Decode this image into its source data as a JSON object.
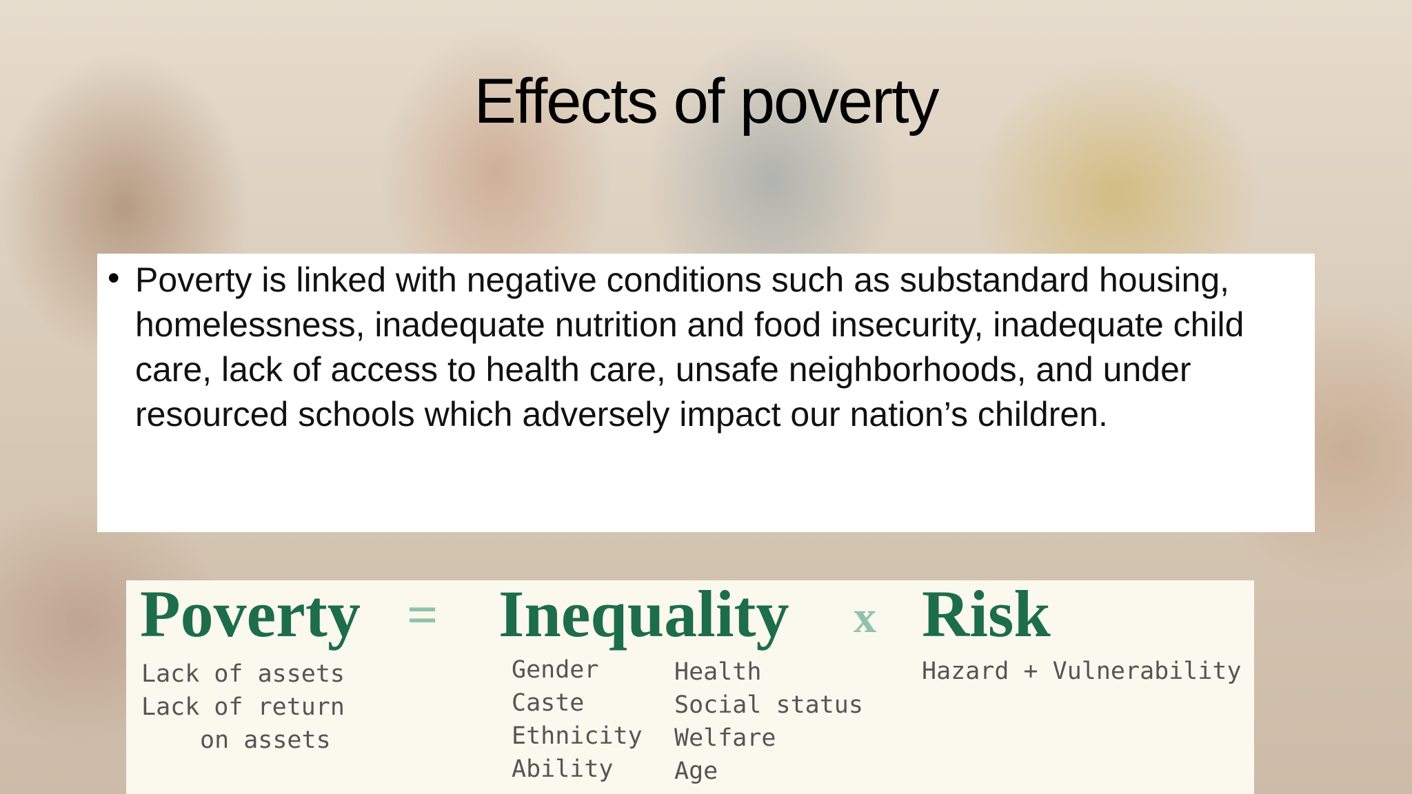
{
  "slide": {
    "title": "Effects of poverty",
    "body": {
      "bullet": "•",
      "text": "Poverty is linked with negative conditions such as substandard housing, homelessness, inadequate nutrition and food insecurity, inadequate child care, lack of access to health care, unsafe neighborhoods, and under resourced schools which adversely impact our nation’s children."
    },
    "equation": {
      "terms": [
        {
          "label": "Poverty",
          "notes": [
            "Lack of assets",
            "Lack of return",
            "on assets"
          ]
        },
        {
          "label": "Inequality",
          "notes": [
            "Gender",
            "Caste",
            "Ethnicity",
            "Ability"
          ],
          "notes_2": [
            "Health",
            "Social status",
            "Welfare",
            "Age"
          ]
        },
        {
          "label": "Risk",
          "notes": [
            "Hazard + Vulnerability"
          ]
        }
      ],
      "operators": [
        "=",
        "x"
      ]
    }
  }
}
